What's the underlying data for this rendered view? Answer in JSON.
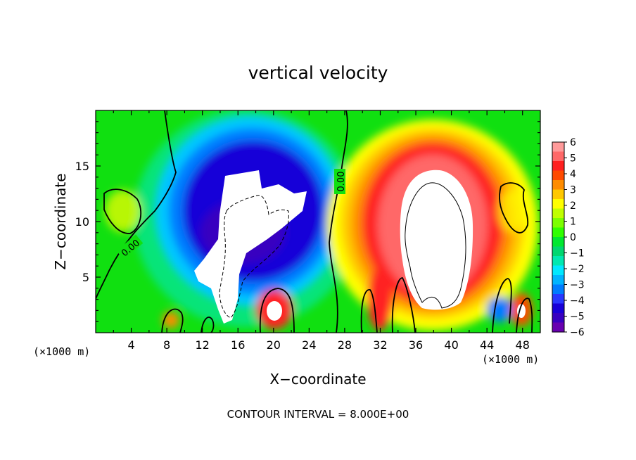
{
  "chart_data": {
    "type": "heatmap",
    "title": "vertical velocity",
    "xlabel": "X−coordinate",
    "ylabel": "Z−coordinate",
    "x_unit": "(×1000 m)",
    "xlim": [
      0,
      50
    ],
    "ylim": [
      0,
      20
    ],
    "x_ticks": [
      4,
      8,
      12,
      16,
      20,
      24,
      28,
      32,
      36,
      40,
      44,
      48
    ],
    "y_ticks": [
      5,
      10,
      15
    ],
    "colorbar": {
      "range": [
        -6,
        6
      ],
      "labels": [
        "6",
        "5",
        "4",
        "3",
        "2",
        "1",
        "0",
        "−1",
        "−2",
        "−3",
        "−4",
        "−5",
        "−6"
      ],
      "colors": [
        "#ff9a9a",
        "#ff6868",
        "#ff2020",
        "#ff4a00",
        "#ff8c00",
        "#ffc800",
        "#ffff00",
        "#c0ff00",
        "#7cff00",
        "#30ff00",
        "#00e830",
        "#00d770",
        "#00e8b0",
        "#00e8ff",
        "#00b4ff",
        "#007cff",
        "#2838ff",
        "#1800d8",
        "#3800c0",
        "#6800b0"
      ]
    },
    "contour_label": "0.00",
    "contour_interval": "CONTOUR INTERVAL =  8.000E+00",
    "features": [
      {
        "name": "downdraft core",
        "x": 16.5,
        "z": 9.0,
        "w": -8
      },
      {
        "name": "updraft core",
        "x": 38.0,
        "z": 9.5,
        "w": 8
      },
      {
        "name": "updraft cell",
        "x": 20.0,
        "z": 2.0,
        "w": 7
      },
      {
        "name": "updraft cell",
        "x": 48.0,
        "z": 2.0,
        "w": 5
      },
      {
        "name": "updraft cell",
        "x": 8.5,
        "z": 1.2,
        "w": 3
      }
    ]
  }
}
